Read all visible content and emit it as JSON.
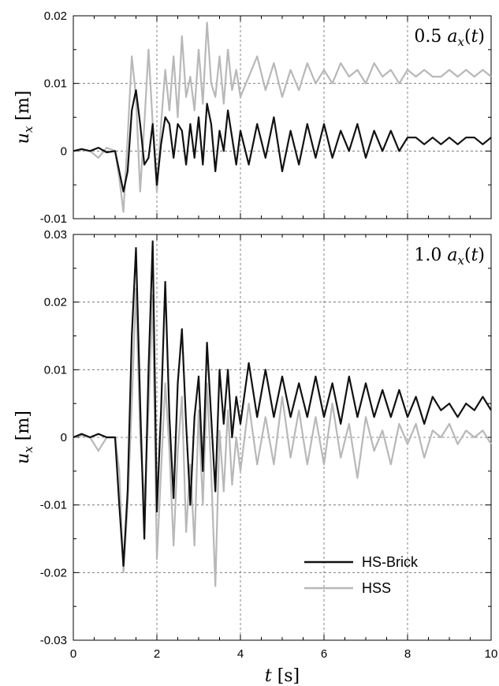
{
  "chart_data": [
    {
      "type": "line",
      "annotation": "0.5 a_x(t)",
      "ylabel": "u_x [m]",
      "xlabel": "",
      "xlim": [
        0,
        10
      ],
      "ylim": [
        -0.01,
        0.02
      ],
      "xticks": [
        "0",
        "2",
        "4",
        "6",
        "8",
        "10"
      ],
      "yticks": [
        {
          "value": 0.02,
          "label": "0.02"
        },
        {
          "value": 0.01,
          "label": "0.01"
        },
        {
          "value": 0,
          "label": "0"
        },
        {
          "value": -0.01,
          "label": "-0.01"
        }
      ],
      "grid": "dashed at major ticks",
      "x": [
        0,
        0.2,
        0.4,
        0.6,
        0.8,
        1.0,
        1.1,
        1.2,
        1.3,
        1.4,
        1.5,
        1.6,
        1.7,
        1.8,
        1.9,
        2.0,
        2.1,
        2.2,
        2.3,
        2.4,
        2.5,
        2.6,
        2.7,
        2.8,
        2.9,
        3.0,
        3.1,
        3.2,
        3.3,
        3.4,
        3.5,
        3.6,
        3.7,
        3.8,
        3.9,
        4.0,
        4.2,
        4.4,
        4.6,
        4.8,
        5.0,
        5.2,
        5.4,
        5.6,
        5.8,
        6.0,
        6.2,
        6.4,
        6.6,
        6.8,
        7.0,
        7.2,
        7.4,
        7.6,
        7.8,
        8.0,
        8.2,
        8.4,
        8.6,
        8.8,
        9.0,
        9.2,
        9.4,
        9.6,
        9.8,
        10.0
      ],
      "series": [
        {
          "name": "HS-Brick",
          "color": "#111111",
          "values": [
            0,
            0.0003,
            0,
            0.0005,
            -0.0002,
            0,
            -0.003,
            -0.006,
            -0.003,
            0.006,
            0.009,
            0.004,
            -0.002,
            -0.001,
            0.004,
            -0.005,
            0.001,
            0.005,
            0.004,
            -0.001,
            0.004,
            0.003,
            -0.002,
            0.004,
            -0.001,
            0.005,
            -0.002,
            0.007,
            0.004,
            -0.003,
            0.003,
            0.0,
            0.006,
            0.002,
            -0.002,
            0.003,
            -0.002,
            0.004,
            -0.001,
            0.005,
            -0.003,
            0.003,
            -0.002,
            0.004,
            -0.001,
            0.004,
            -0.001,
            0.003,
            0.0,
            0.004,
            -0.001,
            0.003,
            0.0,
            0.003,
            0.0,
            0.002,
            0.002,
            0.001,
            0.002,
            0.001,
            0.002,
            0.001,
            0.002,
            0.002,
            0.001,
            0.002
          ]
        },
        {
          "name": "HSS",
          "color": "#b8b8b8",
          "values": [
            0,
            0.0002,
            0,
            -0.001,
            0.0005,
            0,
            -0.004,
            -0.009,
            0.002,
            0.014,
            0.008,
            -0.006,
            0.004,
            0.015,
            0.004,
            -0.006,
            0.004,
            0.012,
            0.006,
            0.014,
            0.005,
            0.017,
            0.008,
            0.011,
            0.006,
            0.015,
            0.007,
            0.019,
            0.01,
            0.008,
            0.014,
            0.007,
            0.015,
            0.009,
            0.012,
            0.008,
            0.011,
            0.014,
            0.009,
            0.013,
            0.008,
            0.012,
            0.009,
            0.013,
            0.01,
            0.012,
            0.01,
            0.013,
            0.011,
            0.012,
            0.01,
            0.013,
            0.011,
            0.012,
            0.01,
            0.012,
            0.011,
            0.012,
            0.011,
            0.011,
            0.012,
            0.011,
            0.012,
            0.011,
            0.012,
            0.011
          ]
        }
      ]
    },
    {
      "type": "line",
      "annotation": "1.0 a_x(t)",
      "ylabel": "u_x [m]",
      "xlabel": "t [s]",
      "xlim": [
        0,
        10
      ],
      "ylim": [
        -0.03,
        0.03
      ],
      "xticks": [
        "0",
        "2",
        "4",
        "6",
        "8",
        "10"
      ],
      "yticks": [
        {
          "value": 0.03,
          "label": "0.03"
        },
        {
          "value": 0.02,
          "label": "0.02"
        },
        {
          "value": 0.01,
          "label": "0.01"
        },
        {
          "value": 0,
          "label": "0"
        },
        {
          "value": -0.01,
          "label": "-0.01"
        },
        {
          "value": -0.02,
          "label": "-0.02"
        },
        {
          "value": -0.03,
          "label": "-0.03"
        }
      ],
      "grid": "dashed at major ticks",
      "legend": {
        "position": "lower-right",
        "entries": [
          "HS-Brick",
          "HSS"
        ]
      },
      "x": [
        0,
        0.2,
        0.4,
        0.6,
        0.8,
        1.0,
        1.1,
        1.2,
        1.3,
        1.4,
        1.5,
        1.6,
        1.7,
        1.8,
        1.9,
        2.0,
        2.1,
        2.2,
        2.3,
        2.4,
        2.5,
        2.6,
        2.7,
        2.8,
        2.9,
        3.0,
        3.1,
        3.2,
        3.3,
        3.4,
        3.5,
        3.6,
        3.7,
        3.8,
        3.9,
        4.0,
        4.2,
        4.4,
        4.6,
        4.8,
        5.0,
        5.2,
        5.4,
        5.6,
        5.8,
        6.0,
        6.2,
        6.4,
        6.6,
        6.8,
        7.0,
        7.2,
        7.4,
        7.6,
        7.8,
        8.0,
        8.2,
        8.4,
        8.6,
        8.8,
        9.0,
        9.2,
        9.4,
        9.6,
        9.8,
        10.0
      ],
      "series": [
        {
          "name": "HS-Brick",
          "color": "#111111",
          "values": [
            0,
            0.0005,
            0,
            0.0005,
            0,
            0,
            -0.01,
            -0.019,
            -0.008,
            0.015,
            0.028,
            0.005,
            -0.015,
            0.01,
            0.029,
            -0.011,
            0.004,
            0.023,
            0.003,
            -0.009,
            0.008,
            0.016,
            0.002,
            -0.01,
            0.003,
            0.009,
            -0.005,
            0.014,
            0.003,
            -0.008,
            0.01,
            0.002,
            0.01,
            0.0,
            0.006,
            0.002,
            0.011,
            0.003,
            0.01,
            0.003,
            0.009,
            0.003,
            0.008,
            0.003,
            0.009,
            0.003,
            0.008,
            0.002,
            0.009,
            0.003,
            0.008,
            0.003,
            0.007,
            0.003,
            0.007,
            0.003,
            0.006,
            0.002,
            0.006,
            0.004,
            0.005,
            0.003,
            0.005,
            0.004,
            0.006,
            0.004
          ]
        },
        {
          "name": "HSS",
          "color": "#b8b8b8",
          "values": [
            0,
            0.0003,
            0,
            -0.002,
            0,
            0,
            -0.005,
            -0.02,
            -0.01,
            0.005,
            0.022,
            0.0,
            -0.01,
            0.004,
            0.021,
            -0.018,
            -0.005,
            0.008,
            -0.002,
            -0.016,
            -0.002,
            0.006,
            -0.014,
            -0.004,
            -0.016,
            0.004,
            -0.01,
            0.008,
            -0.005,
            -0.022,
            0.001,
            -0.008,
            0.004,
            -0.007,
            0.0,
            -0.005,
            0.005,
            -0.004,
            0.003,
            -0.004,
            0.006,
            -0.003,
            0.004,
            -0.004,
            0.003,
            -0.004,
            0.005,
            -0.003,
            0.002,
            -0.006,
            0.003,
            -0.002,
            0.001,
            -0.004,
            0.002,
            -0.001,
            0.002,
            -0.003,
            0.001,
            0.0,
            0.002,
            -0.001,
            0.001,
            0.0,
            0.001,
            -0.001
          ]
        }
      ]
    }
  ]
}
